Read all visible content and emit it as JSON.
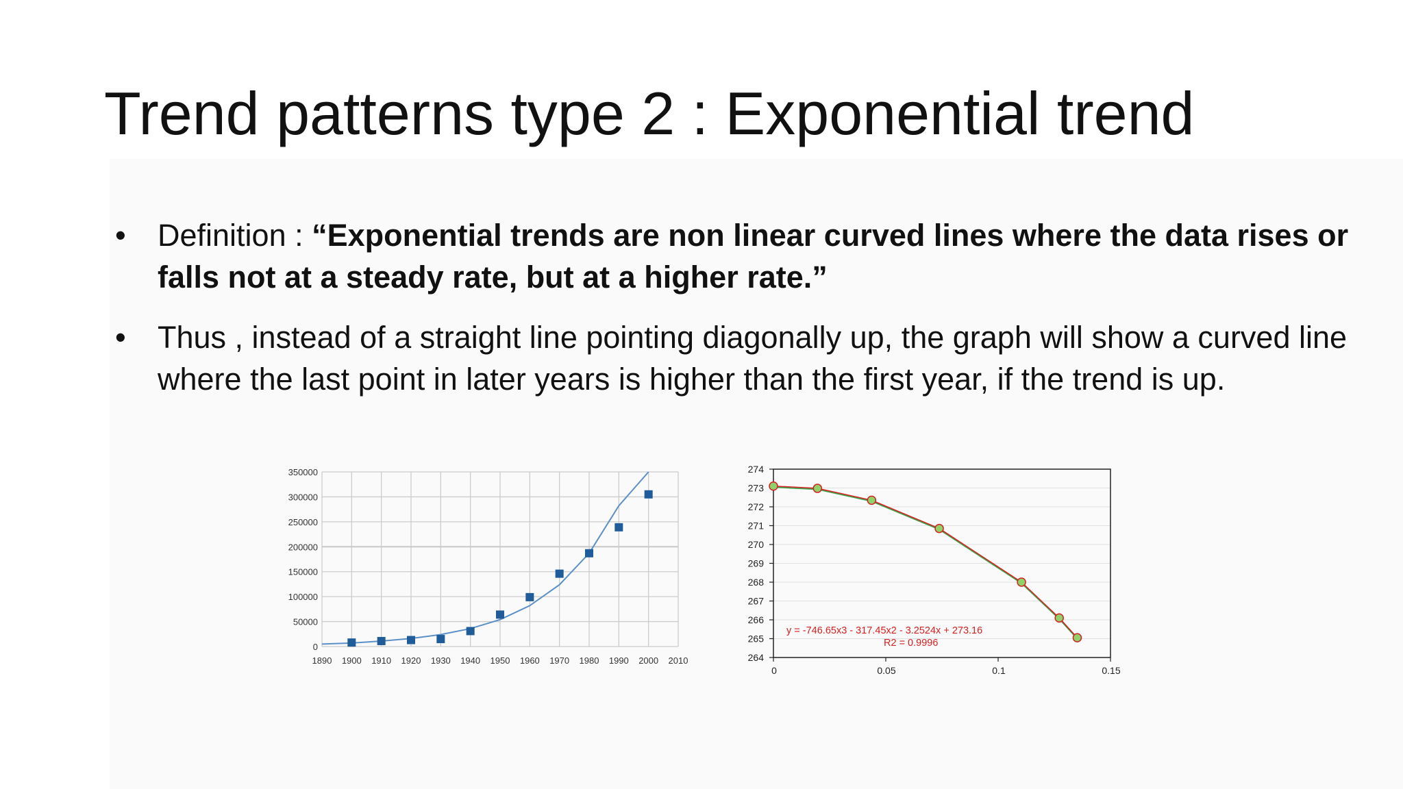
{
  "slide": {
    "title": "Trend patterns type 2 : Exponential trend",
    "bullet_symbol": "•",
    "bullets": [
      {
        "prefix": "Definition : ",
        "bold": "“Exponential trends are non linear curved lines where the data rises or falls not at a steady rate, but at a higher rate.”"
      },
      {
        "text": "Thus , instead of a straight line pointing diagonally up, the graph will show a curved line where the last point in later years is higher than the first year, if the trend is up."
      }
    ]
  },
  "chart_data": [
    {
      "type": "scatter",
      "title": "",
      "xlabel": "",
      "ylabel": "",
      "x_ticks": [
        1890,
        1900,
        1910,
        1920,
        1930,
        1940,
        1950,
        1960,
        1970,
        1980,
        1990,
        2000,
        2010
      ],
      "y_ticks": [
        0,
        50000,
        100000,
        150000,
        200000,
        250000,
        300000,
        350000
      ],
      "xlim": [
        1890,
        2010
      ],
      "ylim": [
        0,
        350000
      ],
      "grid": true,
      "points": {
        "x": [
          1900,
          1910,
          1920,
          1930,
          1940,
          1950,
          1960,
          1970,
          1980,
          1990,
          2000
        ],
        "y": [
          8000,
          11000,
          13000,
          15000,
          31000,
          64000,
          99000,
          146000,
          187000,
          239000,
          305000
        ]
      },
      "trendline": {
        "type": "exponential",
        "x": [
          1890,
          1900,
          1910,
          1920,
          1930,
          1940,
          1950,
          1960,
          1970,
          1980,
          1990,
          2000
        ],
        "y": [
          5000,
          7000,
          11000,
          16000,
          24000,
          36000,
          54000,
          82000,
          124000,
          187000,
          282000,
          350000
        ]
      },
      "colors": {
        "points": "#1f5c99",
        "trendline": "#5b8fc7",
        "grid": "#cccccc"
      }
    },
    {
      "type": "line",
      "title": "",
      "xlabel": "",
      "ylabel": "",
      "x_ticks": [
        "0",
        "0.05",
        "0.1",
        "0.15"
      ],
      "y_ticks": [
        264,
        265,
        266,
        267,
        268,
        269,
        270,
        271,
        272,
        273,
        274
      ],
      "xlim": [
        0,
        0.15
      ],
      "ylim": [
        264,
        274
      ],
      "grid": true,
      "series": [
        {
          "x": [
            0,
            0.0196,
            0.0437,
            0.0738,
            0.1104,
            0.1272,
            0.1352
          ],
          "y": [
            273.1,
            272.98,
            272.35,
            270.85,
            268.0,
            266.1,
            265.05
          ]
        }
      ],
      "annotations": [
        "y = -746.65x3 - 317.45x2 - 3.2524x + 273.16",
        "R2 = 0.9996"
      ],
      "colors": {
        "line": "#d62020",
        "fit": "#3aa34a",
        "marker_fill": "#8fd16a",
        "annotation": "#d62020",
        "grid": "#e0e0e0"
      }
    }
  ]
}
